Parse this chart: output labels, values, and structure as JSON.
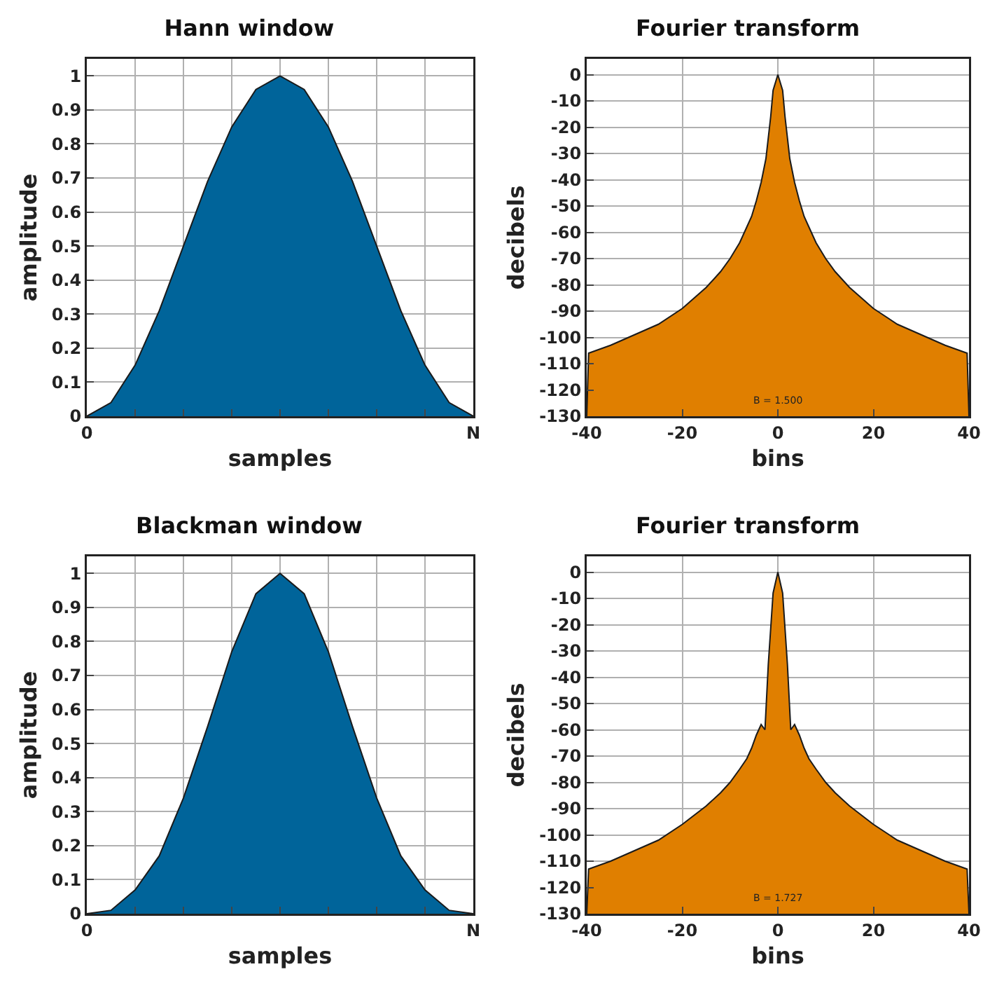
{
  "chart_data": [
    {
      "type": "area",
      "title": "Hann window",
      "xlabel": "samples",
      "ylabel": "amplitude",
      "ylim": [
        0,
        1.05
      ],
      "yticks": [
        0,
        0.1,
        0.2,
        0.3,
        0.4,
        0.5,
        0.6,
        0.7,
        0.8,
        0.9,
        1
      ],
      "grid": true,
      "categories": [
        "0",
        null,
        null,
        null,
        null,
        null,
        null,
        null,
        null,
        null,
        null,
        null,
        null,
        null,
        null,
        null,
        "N"
      ],
      "series": [
        {
          "color": "#00649a",
          "values": [
            0,
            0.04,
            0.15,
            0.31,
            0.5,
            0.69,
            0.85,
            0.96,
            1,
            0.96,
            0.85,
            0.69,
            0.5,
            0.31,
            0.15,
            0.04,
            0
          ]
        }
      ]
    },
    {
      "type": "area",
      "title": "Fourier transform",
      "xlabel": "bins",
      "ylabel": "decibels",
      "xlim": [
        -40,
        40
      ],
      "ylim": [
        -130,
        6
      ],
      "xticks": [
        -40,
        -20,
        0,
        20,
        40
      ],
      "yticks": [
        0,
        -10,
        -20,
        -30,
        -40,
        -50,
        -60,
        -70,
        -80,
        -90,
        -100,
        -110,
        -120,
        -130
      ],
      "grid": true,
      "annotations": [
        "B = 1.500"
      ],
      "x": [
        -40,
        -39.6,
        -35,
        -30,
        -25,
        -20,
        -15,
        -12,
        -10,
        -8,
        -6.5,
        -5.5,
        -4.5,
        -3.5,
        -2.5,
        -1.5,
        -1,
        0,
        1,
        1.5,
        2.5,
        3.5,
        4.5,
        5.5,
        6.5,
        8,
        10,
        12,
        15,
        20,
        25,
        30,
        35,
        39.6,
        40
      ],
      "series": [
        {
          "color": "#e07f00",
          "values": [
            -130,
            -106,
            -103,
            -99,
            -95,
            -89,
            -81,
            -75,
            -70,
            -64,
            -58,
            -54,
            -48,
            -41,
            -32,
            -16,
            -6,
            0,
            -6,
            -16,
            -32,
            -41,
            -48,
            -54,
            -58,
            -64,
            -70,
            -75,
            -81,
            -89,
            -95,
            -99,
            -103,
            -106,
            -130
          ]
        }
      ]
    },
    {
      "type": "area",
      "title": "Blackman window",
      "xlabel": "samples",
      "ylabel": "amplitude",
      "ylim": [
        0,
        1.05
      ],
      "yticks": [
        0,
        0.1,
        0.2,
        0.3,
        0.4,
        0.5,
        0.6,
        0.7,
        0.8,
        0.9,
        1
      ],
      "grid": true,
      "categories": [
        "0",
        null,
        null,
        null,
        null,
        null,
        null,
        null,
        null,
        null,
        null,
        null,
        null,
        null,
        null,
        null,
        "N"
      ],
      "series": [
        {
          "color": "#00649a",
          "values": [
            0,
            0.01,
            0.07,
            0.17,
            0.34,
            0.55,
            0.77,
            0.94,
            1,
            0.94,
            0.77,
            0.55,
            0.34,
            0.17,
            0.07,
            0.01,
            0
          ]
        }
      ]
    },
    {
      "type": "area",
      "title": "Fourier transform",
      "xlabel": "bins",
      "ylabel": "decibels",
      "xlim": [
        -40,
        40
      ],
      "ylim": [
        -130,
        6
      ],
      "xticks": [
        -40,
        -20,
        0,
        20,
        40
      ],
      "yticks": [
        0,
        -10,
        -20,
        -30,
        -40,
        -50,
        -60,
        -70,
        -80,
        -90,
        -100,
        -110,
        -120,
        -130
      ],
      "grid": true,
      "annotations": [
        "B = 1.727"
      ],
      "x": [
        -40,
        -39.6,
        -35,
        -30,
        -25,
        -20,
        -15,
        -12,
        -10,
        -8,
        -6.5,
        -5.5,
        -4.5,
        -3.5,
        -2.7,
        -2,
        -1,
        0,
        1,
        2,
        2.7,
        3.5,
        4.5,
        5.5,
        6.5,
        8,
        10,
        12,
        15,
        20,
        25,
        30,
        35,
        39.6,
        40
      ],
      "series": [
        {
          "color": "#e07f00",
          "values": [
            -130,
            -113,
            -110,
            -106,
            -102,
            -96,
            -89,
            -84,
            -80,
            -75,
            -71,
            -67,
            -62,
            -58,
            -60,
            -35,
            -8,
            0,
            -8,
            -35,
            -60,
            -58,
            -62,
            -67,
            -71,
            -75,
            -80,
            -84,
            -89,
            -96,
            -102,
            -106,
            -110,
            -113,
            -130
          ]
        }
      ]
    }
  ]
}
